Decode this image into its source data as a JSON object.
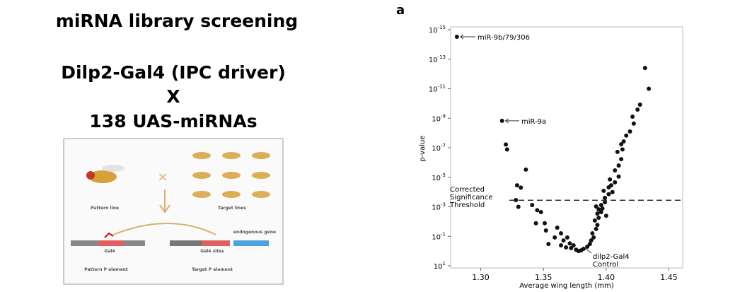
{
  "slide": {
    "title": "miRNA library screening",
    "lines": [
      "Dilp2-Gal4 (IPC driver)",
      "X",
      "138 UAS-miRNAs"
    ]
  },
  "diagram": {
    "pattern_line": "Pattern line",
    "target_lines": "Target lines",
    "pattern_element": "Pattern P element",
    "target_element": "Target P element",
    "gal4": "Gal4",
    "gal4_sites": "Gal4 sites",
    "gene": "endogenous gene"
  },
  "chart_data": {
    "type": "scatter",
    "panel_label": "a",
    "xlabel": "Average wing length (mm)",
    "ylabel": "p-value",
    "color": "#111111",
    "ylog": true,
    "x": [
      1.281,
      1.317,
      1.32,
      1.321,
      1.336,
      1.329,
      1.332,
      1.328,
      1.33,
      1.341,
      1.345,
      1.348,
      1.344,
      1.351,
      1.352,
      1.354,
      1.361,
      1.359,
      1.364,
      1.366,
      1.369,
      1.371,
      1.364,
      1.368,
      1.372,
      1.374,
      1.376,
      1.378,
      1.38,
      1.382,
      1.385,
      1.387,
      1.388,
      1.39,
      1.389,
      1.392,
      1.393,
      1.391,
      1.394,
      1.393,
      1.396,
      1.394,
      1.397,
      1.396,
      1.399,
      1.392,
      1.399,
      1.402,
      1.398,
      1.402,
      1.404,
      1.407,
      1.403,
      1.41,
      1.407,
      1.41,
      1.412,
      1.413,
      1.412,
      1.414,
      1.409,
      1.419,
      1.422,
      1.421,
      1.425,
      1.427,
      1.416,
      1.405,
      1.4,
      1.431,
      1.434
    ],
    "values": [
      3e-15,
      1.5e-09,
      6e-08,
      1.3e-07,
      3e-06,
      3.5e-05,
      5e-05,
      0.00035,
      0.001,
      0.00076,
      0.0017,
      0.0023,
      0.013,
      0.013,
      0.04,
      0.33,
      0.026,
      0.12,
      0.063,
      0.19,
      0.12,
      0.3,
      0.41,
      0.56,
      0.63,
      0.41,
      0.8,
      1,
      0.9,
      0.7,
      0.5,
      0.33,
      0.19,
      0.12,
      0.063,
      0.032,
      0.017,
      0.0085,
      0.0055,
      0.0029,
      0.0023,
      0.0015,
      0.0013,
      0.00076,
      0.00049,
      0.00095,
      0.00025,
      0.00014,
      8.3e-05,
      4.8e-05,
      3.5e-05,
      2.2e-05,
      1.4e-05,
      9e-06,
      3.4e-06,
      1.6e-06,
      5.9e-07,
      1.3e-07,
      5.8e-08,
      3.7e-08,
      1.9e-07,
      7.9e-09,
      2.3e-09,
      7.8e-10,
      2.6e-10,
      1.2e-10,
      1.5e-08,
      0.0001,
      0.004,
      3.9e-13,
      1e-11
    ],
    "xlim": [
      1.276,
      1.461
    ],
    "xticks": [
      {
        "value": 1.3,
        "label": "1.30"
      },
      1.35,
      {
        "value": 1.4,
        "label": "1.40"
      },
      1.45
    ],
    "ylim": [
      10,
      1e-15
    ],
    "yticks": [
      {
        "value": 10,
        "label": "10^1"
      },
      {
        "value": 0.1,
        "label": "10^-1"
      },
      {
        "value": 0.001,
        "label": "10^-3"
      },
      {
        "value": 1e-05,
        "label": "10^-5"
      },
      {
        "value": 1e-07,
        "label": "10^-7"
      },
      {
        "value": 1e-09,
        "label": "10^-9"
      },
      {
        "value": 1e-11,
        "label": "10^-11"
      },
      {
        "value": 1e-13,
        "label": "10^-13"
      },
      {
        "value": 1e-15,
        "label": "10^-15"
      }
    ],
    "threshold": 0.00036,
    "annotations": [
      {
        "lines": [
          "miR-9b/79/306"
        ]
      },
      {
        "lines": [
          "miR-9a"
        ]
      },
      {
        "lines": [
          "Corrected",
          "Significance",
          "Threshold"
        ]
      },
      {
        "lines": [
          "dilp2-Gal4",
          "Control"
        ]
      }
    ]
  }
}
